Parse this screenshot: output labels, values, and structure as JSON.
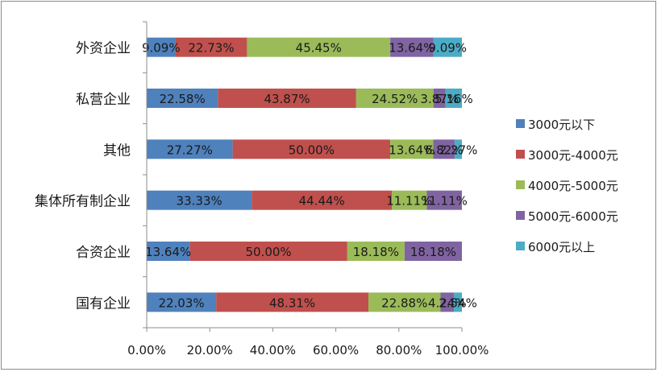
{
  "chart_data": {
    "type": "bar",
    "orientation": "horizontal",
    "stacked": "percent",
    "categories": [
      "国有企业",
      "合资企业",
      "集体所有制企业",
      "其他",
      "私营企业",
      "外资企业"
    ],
    "series": [
      {
        "name": "3000元以下",
        "color": "#4F81BD",
        "values": [
          22.03,
          13.64,
          33.33,
          27.27,
          22.58,
          9.09
        ],
        "labels": [
          "22.03%",
          "13.64%",
          "33.33%",
          "27.27%",
          "22.58%",
          "9.09%"
        ]
      },
      {
        "name": "3000元-4000元",
        "color": "#C0504D",
        "values": [
          48.31,
          50.0,
          44.44,
          50.0,
          43.87,
          22.73
        ],
        "labels": [
          "48.31%",
          "50.00%",
          "44.44%",
          "50.00%",
          "43.87%",
          "22.73%"
        ]
      },
      {
        "name": "4000元-5000元",
        "color": "#9BBB59",
        "values": [
          22.88,
          18.18,
          11.11,
          13.64,
          24.52,
          45.45
        ],
        "labels": [
          "22.88%",
          "18.18%",
          "11.11%",
          "13.64%",
          "24.52%",
          "45.45%"
        ]
      },
      {
        "name": "5000元-6000元",
        "color": "#8064A2",
        "values": [
          4.24,
          18.18,
          11.11,
          6.82,
          3.87,
          13.64
        ],
        "labels": [
          "4.24%",
          "18.18%",
          "11.11%",
          "6.82%",
          "3.87%",
          "13.64%"
        ]
      },
      {
        "name": "6000元以上",
        "color": "#4BACC6",
        "values": [
          2.54,
          0,
          0,
          2.27,
          5.16,
          9.09
        ],
        "labels": [
          "2.54%",
          "",
          "",
          "2.27%",
          "5.16%",
          "9.09%"
        ]
      }
    ],
    "xlim": [
      0,
      100
    ],
    "x_ticks": [
      "0.00%",
      "20.00%",
      "40.00%",
      "60.00%",
      "80.00%",
      "100.00%"
    ],
    "grid": false,
    "legend_position": "right"
  }
}
